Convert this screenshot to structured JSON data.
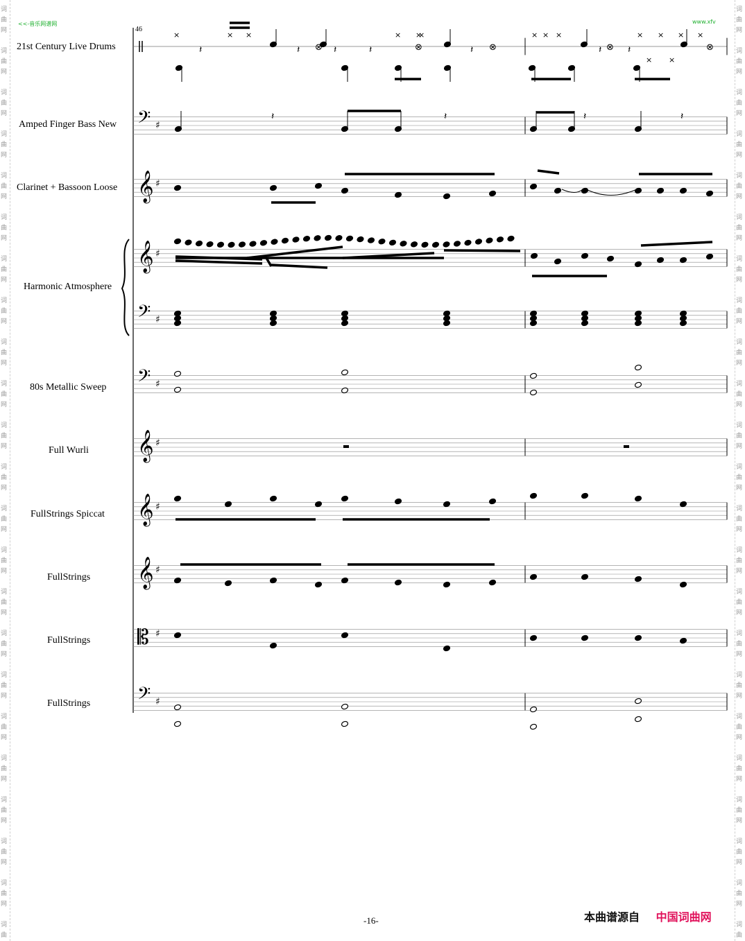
{
  "watermark": {
    "top_left": "<<-音乐网谱网",
    "top_right": "www.xfv"
  },
  "side_glyphs": [
    "词",
    "曲",
    "网"
  ],
  "measure_number": "46",
  "instruments": [
    {
      "name": "21st Century Live Drums",
      "clef": "percussion"
    },
    {
      "name": "Amped Finger Bass New",
      "clef": "bass"
    },
    {
      "name": "Clarinet + Bassoon Loose",
      "clef": "treble"
    },
    {
      "name": "Harmonic Atmosphere",
      "clef": "grand"
    },
    {
      "name": "80s Metallic Sweep",
      "clef": "bass"
    },
    {
      "name": "Full Wurli",
      "clef": "treble"
    },
    {
      "name": "FullStrings Spiccat",
      "clef": "treble"
    },
    {
      "name": "FullStrings",
      "clef": "treble"
    },
    {
      "name": "FullStrings",
      "clef": "alto"
    },
    {
      "name": "FullStrings",
      "clef": "bass"
    }
  ],
  "key_signature": "1 sharp",
  "page_number": "-16-",
  "credit": {
    "label": "本曲谱源自",
    "site": "中国词曲网"
  }
}
